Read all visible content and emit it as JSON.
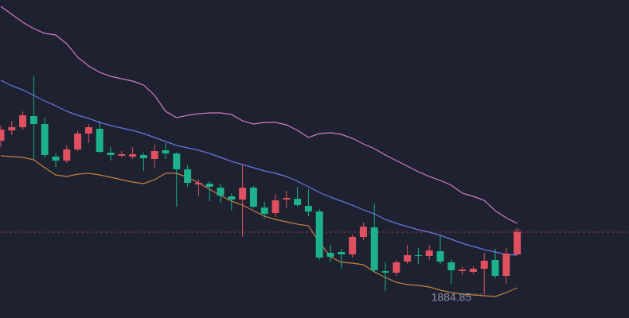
{
  "chart_data": {
    "type": "candlestick",
    "ylim": [
      1881.85,
      1921.85
    ],
    "up_color": "#e0505e",
    "down_color": "#1db18f",
    "low_label": "1884.85",
    "open": [
      1904.15,
      1905.45,
      1905.85,
      1907.25,
      1906.25,
      1902.15,
      1901.65,
      1903.05,
      1905.05,
      1905.65,
      1902.65,
      1902.25,
      1902.15,
      1902.35,
      1901.85,
      1902.95,
      1902.55,
      1900.55,
      1898.65,
      1898.75,
      1898.25,
      1897.15,
      1896.75,
      1898.25,
      1895.75,
      1895.05,
      1896.75,
      1896.85,
      1895.95,
      1895.25,
      1890.05,
      1890.15,
      1889.85,
      1892.05,
      1893.25,
      1887.75,
      1887.55,
      1888.95,
      1889.75,
      1889.65,
      1890.25,
      1888.85,
      1887.75,
      1887.65,
      1888.05,
      1889.15,
      1887.15,
      1889.85
    ],
    "high": [
      1906.05,
      1906.65,
      1907.85,
      1912.35,
      1907.05,
      1902.55,
      1903.55,
      1905.35,
      1906.25,
      1906.65,
      1903.35,
      1902.85,
      1903.35,
      1902.65,
      1903.65,
      1903.85,
      1902.65,
      1901.05,
      1899.25,
      1899.05,
      1898.65,
      1897.55,
      1901.15,
      1898.45,
      1896.45,
      1897.45,
      1897.85,
      1898.35,
      1898.05,
      1895.55,
      1891.05,
      1890.55,
      1892.35,
      1893.85,
      1896.25,
      1888.85,
      1889.15,
      1891.05,
      1890.65,
      1891.05,
      1892.35,
      1889.25,
      1888.25,
      1888.35,
      1890.05,
      1890.55,
      1890.65,
      1892.85
    ],
    "low": [
      1903.35,
      1904.85,
      1905.55,
      1901.85,
      1902.05,
      1900.85,
      1901.35,
      1902.85,
      1903.85,
      1902.55,
      1901.65,
      1902.05,
      1901.85,
      1900.35,
      1900.65,
      1901.85,
      1895.85,
      1898.35,
      1897.15,
      1896.55,
      1896.35,
      1895.35,
      1892.05,
      1895.65,
      1894.35,
      1894.55,
      1895.65,
      1895.85,
      1894.65,
      1889.15,
      1888.85,
      1888.05,
      1889.45,
      1891.65,
      1887.55,
      1885.25,
      1887.15,
      1888.65,
      1888.65,
      1889.15,
      1888.65,
      1886.15,
      1887.25,
      1887.35,
      1884.85,
      1886.85,
      1886.15,
      1889.75
    ],
    "close": [
      1905.55,
      1905.85,
      1907.35,
      1906.25,
      1902.35,
      1901.65,
      1903.05,
      1905.05,
      1905.85,
      1902.75,
      1902.35,
      1902.45,
      1902.45,
      1901.95,
      1902.85,
      1902.55,
      1900.55,
      1898.85,
      1898.85,
      1898.35,
      1897.25,
      1896.75,
      1898.25,
      1895.85,
      1894.95,
      1896.65,
      1896.95,
      1896.05,
      1895.25,
      1889.45,
      1889.55,
      1889.85,
      1892.05,
      1893.35,
      1887.85,
      1887.55,
      1888.85,
      1889.75,
      1889.65,
      1890.35,
      1888.95,
      1887.85,
      1887.95,
      1888.05,
      1889.05,
      1887.15,
      1889.95,
      1892.65
    ],
    "series": [
      {
        "color": "#d67ac6",
        "values": [
          1921.05,
          1920.05,
          1919.05,
          1918.25,
          1917.65,
          1917.45,
          1916.35,
          1914.65,
          1913.55,
          1912.75,
          1912.25,
          1911.95,
          1911.65,
          1911.15,
          1909.85,
          1907.85,
          1907.05,
          1907.35,
          1907.55,
          1907.65,
          1907.65,
          1907.45,
          1906.65,
          1906.25,
          1906.45,
          1906.45,
          1906.15,
          1905.45,
          1904.55,
          1905.05,
          1905.15,
          1904.95,
          1904.45,
          1903.75,
          1903.15,
          1902.35,
          1901.65,
          1900.95,
          1900.25,
          1899.65,
          1899.15,
          1898.55,
          1897.55,
          1897.15,
          1896.65,
          1895.35,
          1894.45,
          1893.75
        ]
      },
      {
        "color": "#6b77e6",
        "values": [
          1911.75,
          1911.05,
          1910.55,
          1909.85,
          1909.15,
          1908.55,
          1907.85,
          1907.35,
          1906.95,
          1906.45,
          1906.05,
          1905.75,
          1905.45,
          1905.05,
          1904.55,
          1904.05,
          1903.55,
          1903.25,
          1902.95,
          1902.55,
          1902.05,
          1901.55,
          1901.15,
          1900.75,
          1900.35,
          1900.05,
          1899.65,
          1899.05,
          1898.35,
          1897.65,
          1897.05,
          1896.55,
          1896.05,
          1895.45,
          1894.95,
          1894.25,
          1893.75,
          1893.35,
          1892.95,
          1892.65,
          1892.25,
          1891.75,
          1891.25,
          1890.85,
          1890.45,
          1890.15,
          1889.85,
          1889.75
        ]
      },
      {
        "color": "#c8803d",
        "values": [
          1902.25,
          1902.15,
          1902.05,
          1901.75,
          1900.75,
          1899.85,
          1899.65,
          1899.95,
          1900.05,
          1899.85,
          1899.55,
          1899.25,
          1898.95,
          1898.75,
          1899.25,
          1900.05,
          1900.05,
          1899.55,
          1898.85,
          1898.05,
          1897.25,
          1896.55,
          1896.05,
          1895.35,
          1894.65,
          1894.25,
          1893.95,
          1893.65,
          1893.45,
          1891.35,
          1889.55,
          1888.85,
          1888.75,
          1888.55,
          1887.65,
          1886.95,
          1886.35,
          1886.05,
          1885.95,
          1885.75,
          1885.35,
          1885.05,
          1884.85,
          1884.75,
          1884.65,
          1884.55,
          1885.05,
          1885.65
        ]
      }
    ]
  }
}
